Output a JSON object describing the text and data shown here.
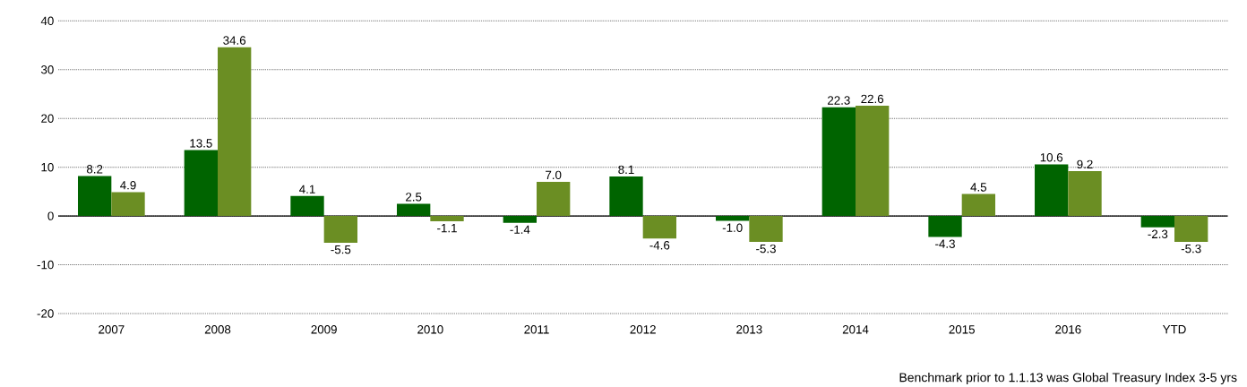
{
  "chart_data": {
    "type": "bar",
    "categories": [
      "2007",
      "2008",
      "2009",
      "2010",
      "2011",
      "2012",
      "2013",
      "2014",
      "2015",
      "2016",
      "YTD"
    ],
    "series": [
      {
        "color": "#006400",
        "values": [
          8.2,
          13.5,
          4.1,
          2.5,
          -1.4,
          8.1,
          -1.0,
          22.3,
          -4.3,
          10.6,
          -2.3
        ],
        "value_labels": [
          "8.2",
          "13.5",
          "4.1",
          "2.5",
          "-1.4",
          "8.1",
          "-1.0",
          "22.3",
          "-4.3",
          "10.6",
          "-2.3"
        ]
      },
      {
        "color": "#6b8e23",
        "values": [
          4.9,
          34.6,
          -5.5,
          -1.1,
          7.0,
          -4.6,
          -5.3,
          22.6,
          4.5,
          9.2,
          -5.3
        ],
        "value_labels": [
          "4.9",
          "34.6",
          "-5.5",
          "-1.1",
          "7.0",
          "-4.6",
          "-5.3",
          "22.6",
          "4.5",
          "9.2",
          "-5.3"
        ]
      }
    ],
    "ylim": [
      -20,
      40
    ],
    "yticks": [
      -20,
      -10,
      0,
      10,
      20,
      30,
      40
    ],
    "grid": "y",
    "ref_lines": [
      {
        "axis": "y",
        "value": 0,
        "color": "#000000"
      }
    ],
    "annotations": [
      "Benchmark prior to 1.1.13 was Global Treasury Index 3-5 yrs"
    ]
  }
}
